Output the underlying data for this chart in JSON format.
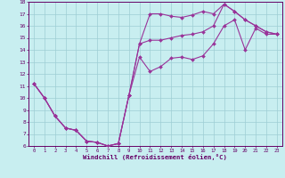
{
  "xlabel": "Windchill (Refroidissement éolien,°C)",
  "xlim": [
    -0.5,
    23.5
  ],
  "ylim": [
    6,
    18
  ],
  "xticks": [
    0,
    1,
    2,
    3,
    4,
    5,
    6,
    7,
    8,
    9,
    10,
    11,
    12,
    13,
    14,
    15,
    16,
    17,
    18,
    19,
    20,
    21,
    22,
    23
  ],
  "yticks": [
    6,
    7,
    8,
    9,
    10,
    11,
    12,
    13,
    14,
    15,
    16,
    17,
    18
  ],
  "bg_color": "#c8eef0",
  "grid_color": "#9ecdd4",
  "line_color": "#993399",
  "curve1_x": [
    0,
    1,
    2,
    3,
    4,
    5,
    6,
    7,
    8,
    9,
    10,
    11,
    12,
    13,
    14,
    15,
    16,
    17,
    18,
    19,
    20,
    21,
    22,
    23
  ],
  "curve1_y": [
    11.2,
    10.0,
    8.5,
    7.5,
    7.3,
    6.4,
    6.3,
    6.0,
    6.2,
    10.2,
    14.5,
    17.0,
    17.0,
    16.8,
    16.7,
    16.9,
    17.2,
    17.0,
    17.8,
    17.2,
    16.5,
    16.0,
    15.5,
    15.3
  ],
  "curve2_x": [
    0,
    1,
    2,
    3,
    4,
    5,
    6,
    7,
    8,
    9,
    10,
    11,
    12,
    13,
    14,
    15,
    16,
    17,
    18,
    19,
    20,
    21,
    22,
    23
  ],
  "curve2_y": [
    11.2,
    10.0,
    8.5,
    7.5,
    7.3,
    6.4,
    6.3,
    6.0,
    6.2,
    10.2,
    13.4,
    12.2,
    12.6,
    13.3,
    13.4,
    13.2,
    13.5,
    14.5,
    16.0,
    16.5,
    14.0,
    15.8,
    15.3,
    15.3
  ],
  "curve3_x": [
    0,
    1,
    2,
    3,
    4,
    5,
    6,
    7,
    8,
    9,
    10,
    11,
    12,
    13,
    14,
    15,
    16,
    17,
    18,
    19,
    20,
    21,
    22,
    23
  ],
  "curve3_y": [
    11.2,
    10.0,
    8.5,
    7.5,
    7.3,
    6.4,
    6.3,
    6.0,
    6.2,
    10.2,
    14.5,
    14.8,
    14.8,
    15.0,
    15.2,
    15.3,
    15.5,
    16.0,
    17.8,
    17.2,
    16.5,
    16.0,
    15.5,
    15.3
  ]
}
